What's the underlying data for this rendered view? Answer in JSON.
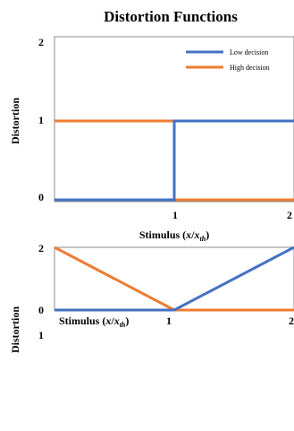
{
  "chart_data": [
    {
      "type": "line",
      "title": "Distortion Functions",
      "xlabel": "Stimulus (x/x_th)",
      "ylabel": "Distortion",
      "x_ticks": [
        "1",
        "2"
      ],
      "y_ticks": [
        "0",
        "1",
        "2"
      ],
      "xlim": [
        0,
        2
      ],
      "ylim": [
        0,
        2
      ],
      "legend": {
        "placement": "top-right",
        "entries": [
          "Low decision",
          "High decision"
        ]
      },
      "series": [
        {
          "name": "Low decision",
          "color": "#4472c4",
          "x": [
            0,
            1,
            1,
            2
          ],
          "y": [
            0,
            0,
            1,
            1
          ]
        },
        {
          "name": "High decision",
          "color": "#ed7d31",
          "x": [
            0,
            1,
            1,
            2
          ],
          "y": [
            1,
            1,
            0,
            0
          ]
        }
      ]
    },
    {
      "type": "line",
      "xlabel": "Stimulus (x/x_th)",
      "ylabel": "Distortion",
      "x_ticks": [
        "1",
        "2"
      ],
      "y_ticks": [
        "0",
        "1",
        "2"
      ],
      "xlim": [
        0,
        2
      ],
      "ylim": [
        0,
        2
      ],
      "series": [
        {
          "name": "Low decision",
          "color": "#4472c4",
          "x": [
            0,
            1,
            2
          ],
          "y": [
            0,
            0,
            2
          ]
        },
        {
          "name": "High decision",
          "color": "#ed7d31",
          "x": [
            0,
            1,
            2
          ],
          "y": [
            2,
            0,
            0
          ]
        }
      ]
    }
  ]
}
